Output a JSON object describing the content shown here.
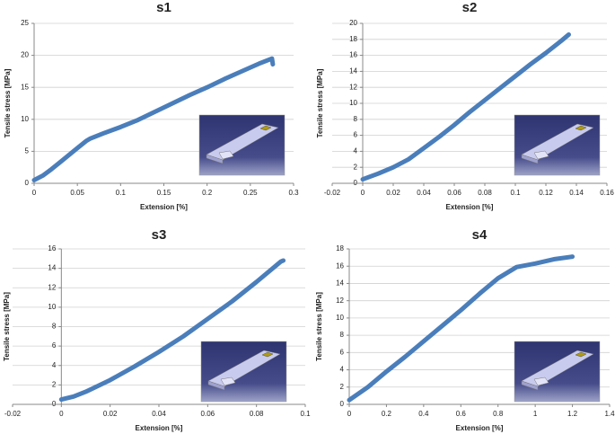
{
  "chart_data": [
    {
      "type": "line",
      "title": "s1",
      "x_label": "Extension [%]",
      "y_label": "Tensile stress [MPa]",
      "x": [
        0,
        0.01,
        0.02,
        0.03,
        0.04,
        0.05,
        0.06,
        0.065,
        0.08,
        0.1,
        0.12,
        0.14,
        0.16,
        0.18,
        0.2,
        0.22,
        0.24,
        0.26,
        0.275,
        0.276
      ],
      "values": [
        0.5,
        1.2,
        2.2,
        3.3,
        4.4,
        5.5,
        6.6,
        7,
        7.8,
        8.8,
        9.9,
        11.2,
        12.5,
        13.8,
        15,
        16.3,
        17.5,
        18.7,
        19.5,
        18.6
      ],
      "color": "#4a7ebb",
      "xlim": [
        0,
        0.3
      ],
      "ylim": [
        0,
        25
      ],
      "xticks": [
        0,
        0.05,
        0.1,
        0.15,
        0.2,
        0.25,
        0.3
      ],
      "yticks": [
        0,
        5,
        10,
        15,
        20,
        25
      ],
      "grid": true
    },
    {
      "type": "line",
      "title": "s2",
      "x_label": "Extension [%]",
      "y_label": "Tensile stress [MPa]",
      "x": [
        0,
        0.01,
        0.02,
        0.03,
        0.04,
        0.05,
        0.06,
        0.07,
        0.08,
        0.09,
        0.1,
        0.11,
        0.12,
        0.13,
        0.135
      ],
      "values": [
        0.5,
        1.2,
        2,
        3,
        4.4,
        5.8,
        7.3,
        8.9,
        10.4,
        11.9,
        13.4,
        14.9,
        16.3,
        17.8,
        18.6
      ],
      "color": "#4a7ebb",
      "xlim": [
        -0.02,
        0.16
      ],
      "ylim": [
        0,
        20
      ],
      "xticks": [
        -0.02,
        0,
        0.02,
        0.04,
        0.06,
        0.08,
        0.1,
        0.12,
        0.14,
        0.16
      ],
      "yticks": [
        0,
        2,
        4,
        6,
        8,
        10,
        12,
        14,
        16,
        18,
        20
      ],
      "grid": true
    },
    {
      "type": "line",
      "title": "s3",
      "x_label": "Extension [%]",
      "y_label": "Tensile stress [MPa]",
      "x": [
        0,
        0.005,
        0.01,
        0.02,
        0.03,
        0.04,
        0.05,
        0.06,
        0.07,
        0.08,
        0.09,
        0.091
      ],
      "values": [
        0.5,
        0.8,
        1.3,
        2.5,
        3.9,
        5.4,
        7,
        8.8,
        10.6,
        12.6,
        14.7,
        14.8
      ],
      "color": "#4a7ebb",
      "xlim": [
        -0.02,
        0.1
      ],
      "ylim": [
        0,
        16
      ],
      "xticks": [
        -0.02,
        0,
        0.02,
        0.04,
        0.06,
        0.08,
        0.1
      ],
      "yticks": [
        0,
        2,
        4,
        6,
        8,
        10,
        12,
        14,
        16
      ],
      "grid": true
    },
    {
      "type": "line",
      "title": "s4",
      "x_label": "Extension [%]",
      "y_label": "Tensile stress [MPa]",
      "x": [
        0,
        0.1,
        0.2,
        0.3,
        0.4,
        0.5,
        0.6,
        0.7,
        0.8,
        0.9,
        1.0,
        1.1,
        1.2
      ],
      "values": [
        0.5,
        2,
        3.8,
        5.5,
        7.3,
        9.1,
        10.9,
        12.8,
        14.6,
        15.9,
        16.3,
        16.8,
        17.1
      ],
      "color": "#4a7ebb",
      "xlim": [
        0,
        1.4
      ],
      "ylim": [
        0,
        18
      ],
      "xticks": [
        0,
        0.2,
        0.4,
        0.6,
        0.8,
        1,
        1.2,
        1.4
      ],
      "yticks": [
        0,
        2,
        4,
        6,
        8,
        10,
        12,
        14,
        16,
        18
      ],
      "grid": true
    }
  ]
}
